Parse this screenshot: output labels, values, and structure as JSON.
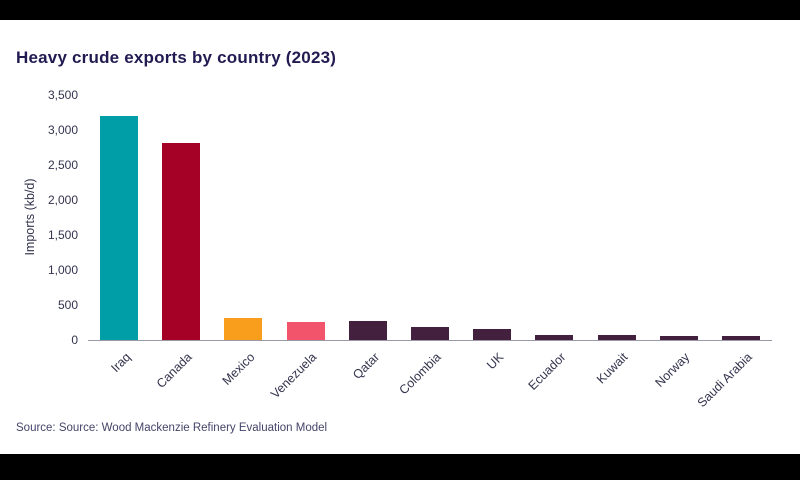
{
  "chart": {
    "title": "Heavy crude exports by country (2023)",
    "ylabel": "Imports (kb/d)",
    "source": "Source: Source: Wood Mackenzie Refinery Evaluation Model"
  },
  "chart_data": {
    "type": "bar",
    "title": "Heavy crude exports by country (2023)",
    "xlabel": "",
    "ylabel": "Imports (kb/d)",
    "categories": [
      "Iraq",
      "Canada",
      "Mexico",
      "Venezuela",
      "Qatar",
      "Colombia",
      "UK",
      "Ecuador",
      "Kuwait",
      "Norway",
      "Saudi Arabia"
    ],
    "values": [
      3200,
      2820,
      320,
      260,
      265,
      190,
      160,
      75,
      70,
      55,
      50
    ],
    "bar_colors": [
      "#009fa8",
      "#a50026",
      "#f99d1c",
      "#f2546b",
      "#44203f",
      "#44203f",
      "#44203f",
      "#44203f",
      "#44203f",
      "#44203f",
      "#44203f"
    ],
    "ylim": [
      0,
      3500
    ],
    "yticks": [
      0,
      500,
      1000,
      1500,
      2000,
      2500,
      3000,
      3500
    ],
    "ytick_labels": [
      "0",
      "500",
      "1,000",
      "1,500",
      "2,000",
      "2,500",
      "3,000",
      "3,500"
    ],
    "grid": false,
    "legend": false,
    "source": "Source: Source: Wood Mackenzie Refinery Evaluation Model"
  }
}
